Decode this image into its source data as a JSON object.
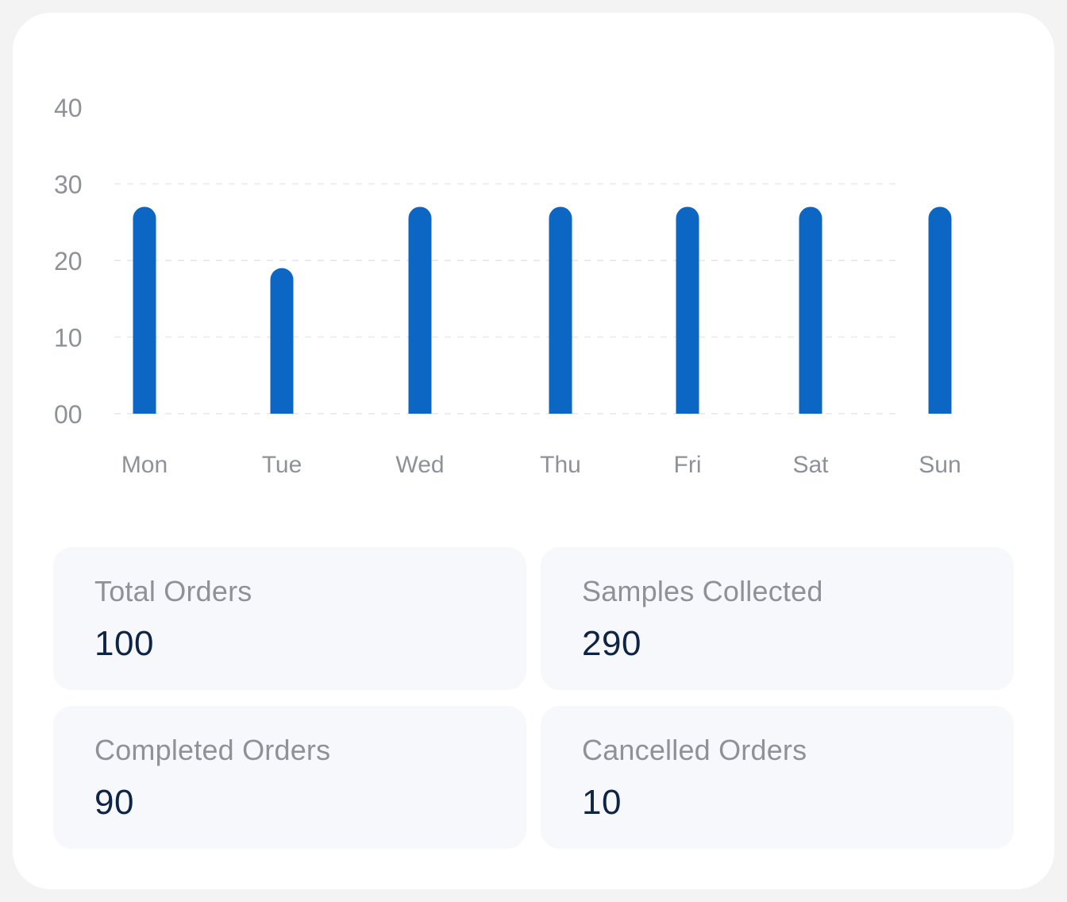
{
  "chart_data": {
    "type": "bar",
    "categories": [
      "Mon",
      "Tue",
      "Wed",
      "Thu",
      "Fri",
      "Sat",
      "Sun"
    ],
    "values": [
      27,
      19,
      27,
      27,
      27,
      27,
      27
    ],
    "ylim": [
      0,
      40
    ],
    "yticks": [
      0,
      10,
      20,
      30,
      40
    ],
    "ytick_labels": [
      "00",
      "10",
      "20",
      "30",
      "40"
    ],
    "grid": true,
    "bar_color": "#0c66c4",
    "title": "",
    "xlabel": "",
    "ylabel": ""
  },
  "stats": {
    "total_orders": {
      "label": "Total Orders",
      "value": "100"
    },
    "samples_collected": {
      "label": "Samples Collected",
      "value": "290"
    },
    "completed_orders": {
      "label": "Completed Orders",
      "value": "90"
    },
    "cancelled_orders": {
      "label": "Cancelled Orders",
      "value": "10"
    }
  },
  "colors": {
    "label_text": "#8e9198",
    "value_text": "#0d2446",
    "tile_background": "#f7f8fb",
    "gridline": "#ececef"
  }
}
